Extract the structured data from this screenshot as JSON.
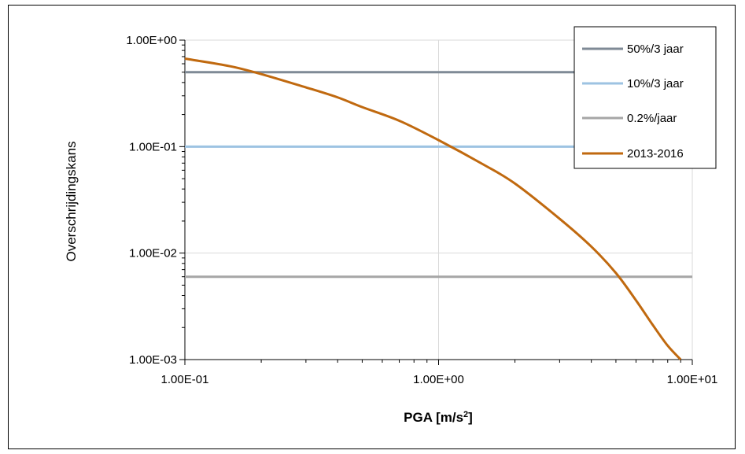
{
  "chart_data": {
    "type": "line",
    "title": "",
    "xlabel": "PGA [m/s",
    "xlabel_sup": "2",
    "xlabel_end": "]",
    "ylabel": "Overschrijdingskans",
    "xscale": "log",
    "yscale": "log",
    "xlim": [
      0.1,
      10
    ],
    "ylim": [
      0.001,
      1
    ],
    "x_ticks": [
      0.1,
      1,
      10
    ],
    "x_tick_labels": [
      "1.00E-01",
      "1.00E+00",
      "1.00E+01"
    ],
    "y_ticks": [
      1,
      0.1,
      0.01,
      0.001
    ],
    "y_tick_labels": [
      "1.00E+00",
      "1.00E-01",
      "1.00E-02",
      "1.00E-03"
    ],
    "grid": true,
    "legend_position": "top-right",
    "series": [
      {
        "name": "50%/3 jaar",
        "color": "#7f8a96",
        "kind": "horizontal",
        "y": 0.5
      },
      {
        "name": "10%/3 jaar",
        "color": "#9dc3e2",
        "kind": "horizontal",
        "y": 0.1
      },
      {
        "name": "0.2%/jaar",
        "color": "#a6a6a6",
        "kind": "horizontal",
        "y": 0.006
      },
      {
        "name": "2013-2016",
        "color": "#c0690f",
        "kind": "curve",
        "x": [
          0.1,
          0.15,
          0.2,
          0.3,
          0.4,
          0.5,
          0.7,
          1.0,
          1.5,
          2.0,
          3.0,
          4.0,
          5.0,
          6.0,
          7.0,
          8.0,
          9.0
        ],
        "y": [
          0.67,
          0.57,
          0.48,
          0.36,
          0.29,
          0.235,
          0.175,
          0.115,
          0.068,
          0.045,
          0.021,
          0.0115,
          0.0065,
          0.0036,
          0.0021,
          0.00135,
          0.001
        ]
      }
    ]
  }
}
